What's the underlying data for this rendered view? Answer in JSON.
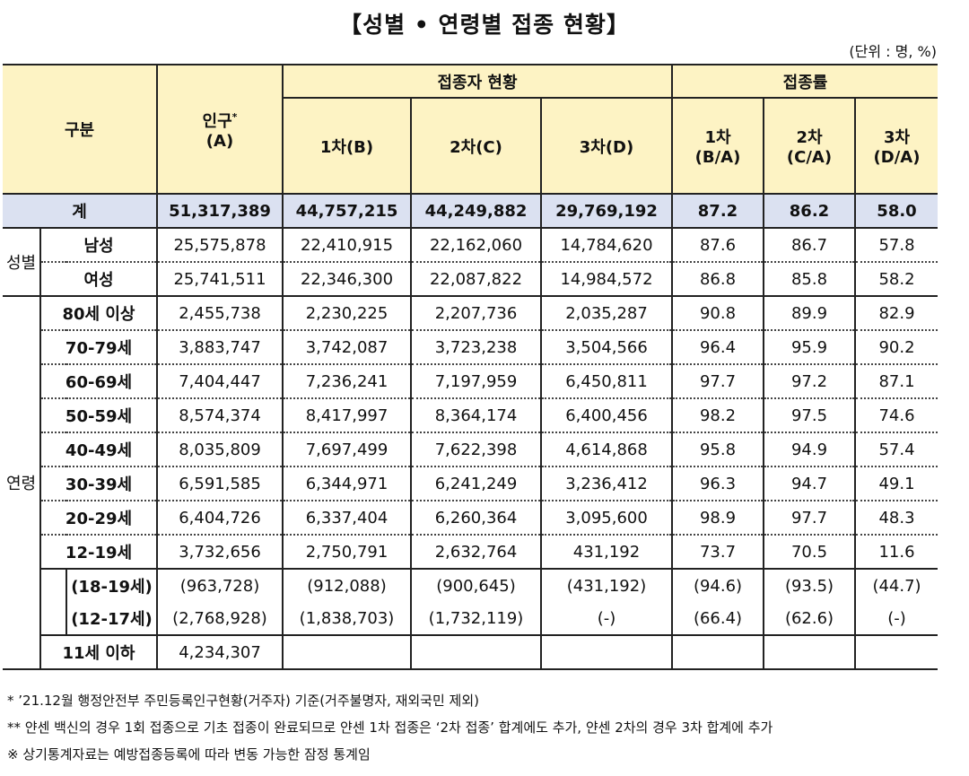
{
  "title": "【성별 • 연령별 접종 현황】",
  "unit": "(단위 : 명, %)",
  "header": {
    "category": "구분",
    "population": "인구",
    "population_mark": "*",
    "population_code": "(A)",
    "vaccinated_group": "접종자 현황",
    "rate_group": "접종률",
    "dose1": "1차(B)",
    "dose2": "2차(C)",
    "dose3": "3차(D)",
    "rate1_top": "1차",
    "rate1_bottom": "(B/A)",
    "rate2_top": "2차",
    "rate2_bottom": "(C/A)",
    "rate3_top": "3차",
    "rate3_bottom": "(D/A)"
  },
  "total": {
    "label": "계",
    "values": [
      "51,317,389",
      "44,757,215",
      "44,249,882",
      "29,769,192",
      "87.2",
      "86.2",
      "58.0"
    ]
  },
  "sex": {
    "group_label": "성별",
    "rows": [
      {
        "label": "남성",
        "values": [
          "25,575,878",
          "22,410,915",
          "22,162,060",
          "14,784,620",
          "87.6",
          "86.7",
          "57.8"
        ]
      },
      {
        "label": "여성",
        "values": [
          "25,741,511",
          "22,346,300",
          "22,087,822",
          "14,984,572",
          "86.8",
          "85.8",
          "58.2"
        ]
      }
    ]
  },
  "age": {
    "group_label": "연령",
    "rows": [
      {
        "label": "80세 이상",
        "values": [
          "2,455,738",
          "2,230,225",
          "2,207,736",
          "2,035,287",
          "90.8",
          "89.9",
          "82.9"
        ]
      },
      {
        "label": "70-79세",
        "values": [
          "3,883,747",
          "3,742,087",
          "3,723,238",
          "3,504,566",
          "96.4",
          "95.9",
          "90.2"
        ]
      },
      {
        "label": "60-69세",
        "values": [
          "7,404,447",
          "7,236,241",
          "7,197,959",
          "6,450,811",
          "97.7",
          "97.2",
          "87.1"
        ]
      },
      {
        "label": "50-59세",
        "values": [
          "8,574,374",
          "8,417,997",
          "8,364,174",
          "6,400,456",
          "98.2",
          "97.5",
          "74.6"
        ]
      },
      {
        "label": "40-49세",
        "values": [
          "8,035,809",
          "7,697,499",
          "7,622,398",
          "4,614,868",
          "95.8",
          "94.9",
          "57.4"
        ]
      },
      {
        "label": "30-39세",
        "values": [
          "6,591,585",
          "6,344,971",
          "6,241,249",
          "3,236,412",
          "96.3",
          "94.7",
          "49.1"
        ]
      },
      {
        "label": "20-29세",
        "values": [
          "6,404,726",
          "6,337,404",
          "6,260,364",
          "3,095,600",
          "98.9",
          "97.7",
          "48.3"
        ]
      },
      {
        "label": "12-19세",
        "values": [
          "3,732,656",
          "2,750,791",
          "2,632,764",
          "431,192",
          "73.7",
          "70.5",
          "11.6"
        ]
      }
    ],
    "sub_rows": [
      {
        "label": "(18-19세)",
        "values": [
          "(963,728)",
          "(912,088)",
          "(900,645)",
          "(431,192)",
          "(94.6)",
          "(93.5)",
          "(44.7)"
        ]
      },
      {
        "label": "(12-17세)",
        "values": [
          "(2,768,928)",
          "(1,838,703)",
          "(1,732,119)",
          "(-)",
          "(66.4)",
          "(62.6)",
          "(-)"
        ]
      }
    ],
    "last_row": {
      "label": "11세 이하",
      "population": "4,234,307"
    }
  },
  "notes": [
    "* ’21.12월 행정안전부 주민등록인구현황(거주자) 기준(거주불명자, 재외국민 제외)",
    "** 얀센 백신의 경우 1회 접종으로 기초 접종이 완료되므로 얀센 1차 접종은 ‘2차 접종’ 합계에도 추가, 얀센 2차의 경우 3차 합계에 추가",
    "※ 상기통계자료는 예방접종등록에 따라 변동 가능한 잠정 통계임"
  ]
}
